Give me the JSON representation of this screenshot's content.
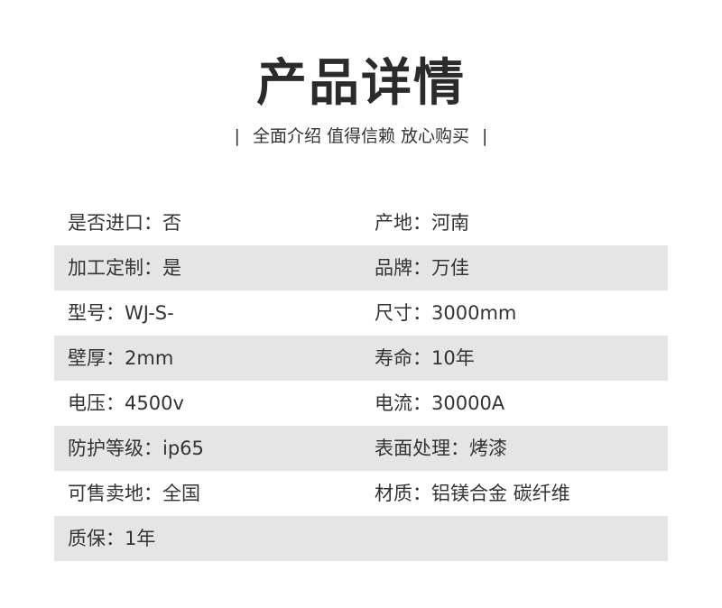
{
  "header": {
    "title": "产品详情",
    "subtitle_left_bar": "|",
    "subtitle": "全面介绍 值得信赖 放心购买",
    "subtitle_right_bar": "|"
  },
  "specs": [
    {
      "left": "是否进口：否",
      "right": "产地：河南"
    },
    {
      "left": "加工定制：是",
      "right": "品牌：万佳"
    },
    {
      "left": "型号：WJ-S-",
      "right": "尺寸：3000mm"
    },
    {
      "left": "壁厚：2mm",
      "right": "寿命：10年"
    },
    {
      "left": "电压：4500v",
      "right": "电流：30000A"
    },
    {
      "left": "防护等级：ip65",
      "right": "表面处理：烤漆"
    },
    {
      "left": "可售卖地：全国",
      "right": "材质：铝镁合金 碳纤维"
    },
    {
      "left": "质保：1年",
      "right": ""
    }
  ],
  "colors": {
    "row_alt": "#e5e5e5",
    "text": "#333333"
  }
}
